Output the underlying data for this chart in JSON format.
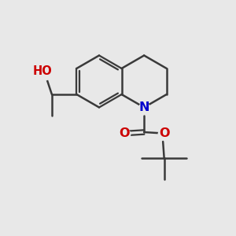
{
  "bg_color": "#e8e8e8",
  "bond_color": "#3a3a3a",
  "N_color": "#0000cc",
  "O_color": "#cc0000",
  "line_width": 1.8,
  "font_size": 11.5,
  "fig_w": 3.0,
  "fig_h": 3.0,
  "dpi": 100,
  "xlim": [
    0,
    10
  ],
  "ylim": [
    0,
    10
  ]
}
